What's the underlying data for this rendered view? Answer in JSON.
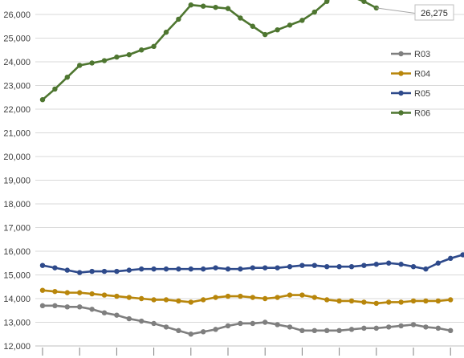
{
  "chart_data": {
    "type": "line",
    "title": "",
    "xlabel": "",
    "ylabel": "",
    "ylim": [
      12000,
      26500
    ],
    "yticks": [
      12000,
      13000,
      14000,
      15000,
      16000,
      17000,
      18000,
      19000,
      20000,
      21000,
      22000,
      23000,
      24000,
      25000,
      26000
    ],
    "ytick_labels": [
      "12,000",
      "13,000",
      "14,000",
      "15,000",
      "16,000",
      "17,000",
      "18,000",
      "19,000",
      "20,000",
      "21,000",
      "22,000",
      "23,000",
      "24,000",
      "25,000",
      "26,000"
    ],
    "grid": true,
    "legend": "right",
    "series": [
      {
        "name": "R03",
        "color": "#7f7f7f",
        "values": [
          13700,
          13700,
          13650,
          13650,
          13550,
          13400,
          13300,
          13150,
          13050,
          12950,
          12800,
          12650,
          12500,
          12600,
          12700,
          12850,
          12950,
          12950,
          13000,
          12900,
          12800,
          12650,
          12650,
          12650,
          12650,
          12700,
          12750,
          12750,
          12800,
          12850,
          12900,
          12800,
          12750,
          12650
        ]
      },
      {
        "name": "R04",
        "color": "#b8860b",
        "values": [
          14350,
          14300,
          14250,
          14250,
          14200,
          14150,
          14100,
          14050,
          14000,
          13950,
          13950,
          13900,
          13850,
          13950,
          14050,
          14100,
          14100,
          14050,
          14000,
          14050,
          14150,
          14150,
          14050,
          13950,
          13900,
          13900,
          13850,
          13800,
          13850,
          13850,
          13900,
          13900,
          13900,
          13950
        ]
      },
      {
        "name": "R05",
        "color": "#2e4a8b",
        "values": [
          15400,
          15300,
          15200,
          15100,
          15150,
          15150,
          15150,
          15200,
          15250,
          15250,
          15250,
          15250,
          15250,
          15250,
          15300,
          15250,
          15250,
          15300,
          15300,
          15300,
          15350,
          15400,
          15400,
          15350,
          15350,
          15350,
          15400,
          15450,
          15500,
          15450,
          15350,
          15250,
          15500,
          15700,
          15850
        ]
      },
      {
        "name": "R06",
        "color": "#4e7630",
        "values": [
          22400,
          22850,
          23350,
          23850,
          23950,
          24050,
          24200,
          24300,
          24500,
          24650,
          25250,
          25800,
          26400,
          26350,
          26300,
          26250,
          25850,
          25500,
          25150,
          25350,
          25550,
          25750,
          26100,
          26550,
          27050,
          26750,
          26550,
          26275
        ]
      }
    ],
    "annotations": [
      {
        "series": "R06",
        "index": 27,
        "label": "26,275"
      }
    ]
  }
}
